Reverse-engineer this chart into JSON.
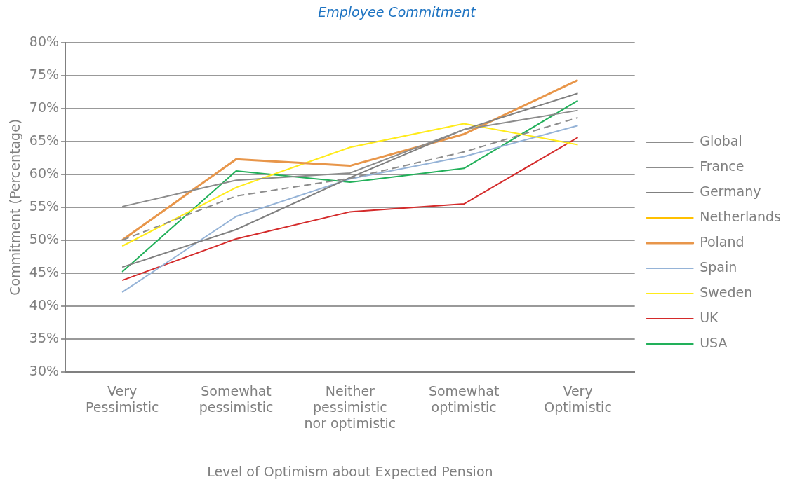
{
  "chart_data": {
    "type": "line",
    "title": "Employee Commitment",
    "xlabel": "Level of Optimism about Expected Pension",
    "ylabel": "Commitment (Percentage)",
    "categories": [
      "Very Pessimistic",
      "Somewhat pessimistic",
      "Neither pessimistic nor optimistic",
      "Somewhat optimistic",
      "Very Optimistic"
    ],
    "series": [
      {
        "name": "Global",
        "color": "#8c8c8c",
        "line_style": "dashed",
        "values": [
          50,
          56.7,
          59.4,
          63.4,
          68.6
        ]
      },
      {
        "name": "France",
        "color": "#8c8c8c",
        "values": [
          55.1,
          59.1,
          60.2,
          66.8,
          69.7
        ]
      },
      {
        "name": "Germany",
        "color": "#808080",
        "values": [
          45.9,
          51.6,
          59.5,
          66.8,
          72.3
        ]
      },
      {
        "name": "Netherlands",
        "color": "#ffc000",
        "values": [
          null,
          null,
          null,
          null,
          null
        ]
      },
      {
        "name": "Poland",
        "color": "#e8964a",
        "values": [
          50,
          62.3,
          61.3,
          66.1,
          74.3
        ]
      },
      {
        "name": "Spain",
        "color": "#95b3d7",
        "values": [
          42.1,
          53.6,
          59.3,
          62.7,
          67.4
        ]
      },
      {
        "name": "Sweden",
        "color": "#ffeb1a",
        "values": [
          49.1,
          58,
          64.1,
          67.7,
          64.5
        ]
      },
      {
        "name": "UK",
        "color": "#d42a2a",
        "values": [
          43.9,
          50.2,
          54.3,
          55.5,
          65.6
        ]
      },
      {
        "name": "USA",
        "color": "#22b05a",
        "values": [
          45.2,
          60.5,
          58.8,
          60.9,
          71.2
        ]
      }
    ],
    "ylim": [
      30,
      80
    ],
    "yticks": [
      {
        "value": 30,
        "label": "30%"
      },
      {
        "value": 35,
        "label": "35%"
      },
      {
        "value": 40,
        "label": "40%"
      },
      {
        "value": 45,
        "label": "45%"
      },
      {
        "value": 50,
        "label": "50%"
      },
      {
        "value": 55,
        "label": "55%"
      },
      {
        "value": 60,
        "label": "60%"
      },
      {
        "value": 65,
        "label": "65%"
      },
      {
        "value": 70,
        "label": "70%"
      },
      {
        "value": 75,
        "label": "75%"
      },
      {
        "value": 80,
        "label": "80%"
      }
    ],
    "grid": "y",
    "legend": "right",
    "marker": "none",
    "line_style": "solid"
  }
}
